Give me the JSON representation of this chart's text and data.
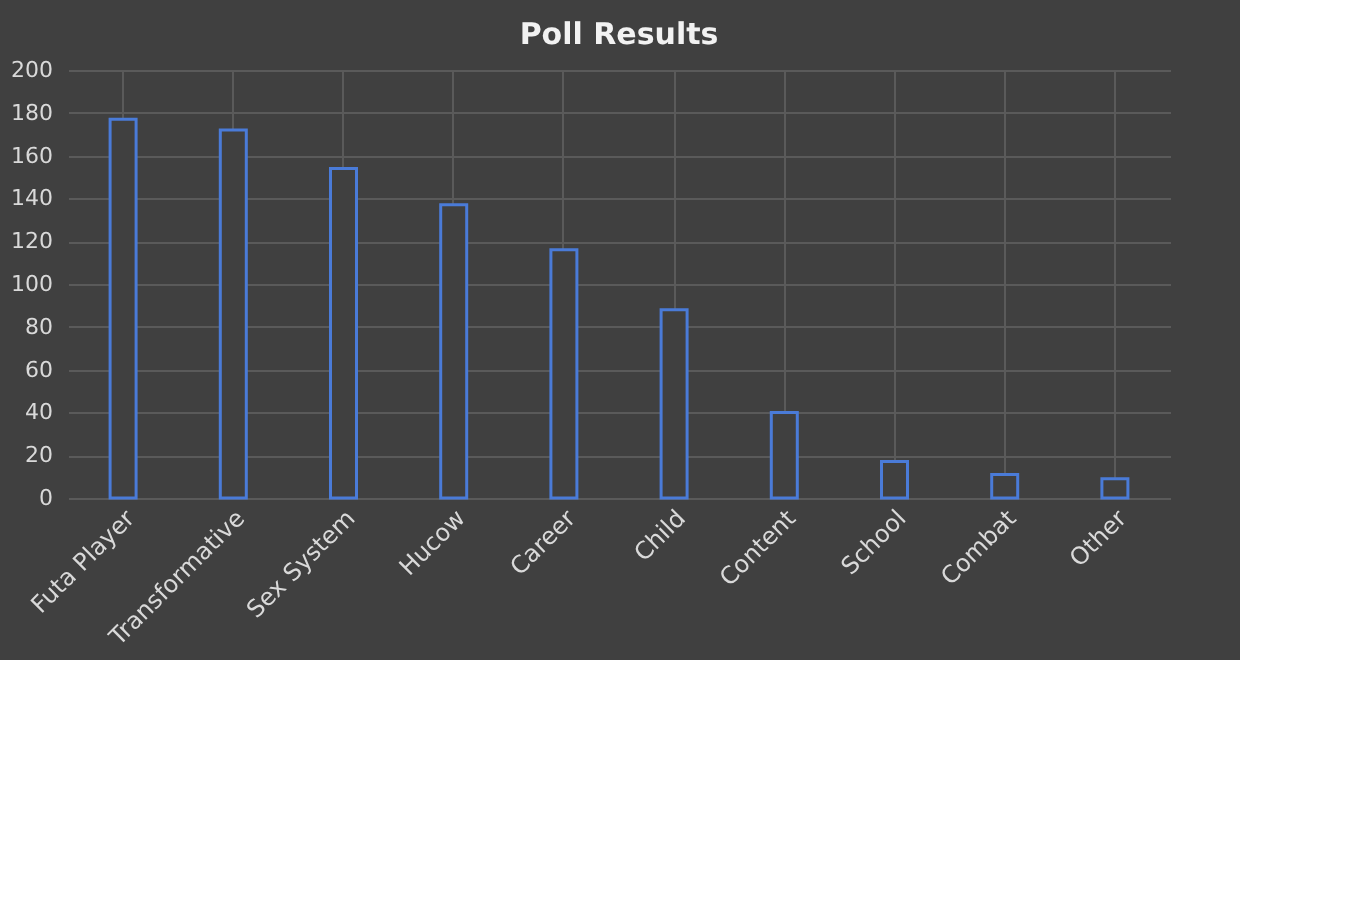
{
  "chart_data": {
    "type": "bar",
    "title": "Poll Results",
    "categories": [
      "Futa Player",
      "Transformative",
      "Sex System",
      "Hucow",
      "Career",
      "Child",
      "Content",
      "School",
      "Combat",
      "Other"
    ],
    "series": [
      {
        "color": "#4a7bd8",
        "values": [
          177,
          172,
          154,
          137,
          116,
          88,
          40,
          17,
          11,
          9
        ]
      }
    ],
    "ylim": [
      0,
      200
    ],
    "yticks": [
      0,
      20,
      40,
      60,
      80,
      100,
      120,
      140,
      160,
      180,
      200
    ],
    "grid": true
  }
}
